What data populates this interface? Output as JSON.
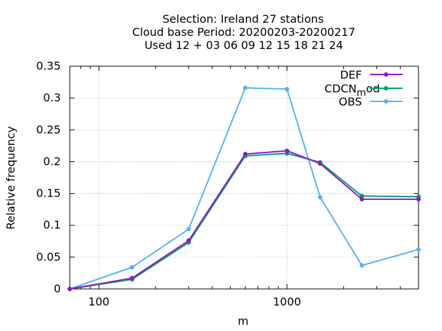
{
  "chart_data": {
    "type": "line",
    "title_lines": [
      "Selection: Ireland      27 stations",
      "Cloud base  Period: 20200203-20200217",
      "Used  12 + 03 06 09 12 15 18 21 24"
    ],
    "xlabel": "m",
    "ylabel": "Relative frequency",
    "xscale": "log",
    "xlim": [
      70,
      5000
    ],
    "ylim": [
      0,
      0.35
    ],
    "x_ticks": [
      100,
      1000
    ],
    "x_tick_labels": [
      "100",
      "1000"
    ],
    "y_ticks": [
      0,
      0.05,
      0.1,
      0.15,
      0.2,
      0.25,
      0.3,
      0.35
    ],
    "y_tick_labels": [
      "0",
      "0.05",
      "0.1",
      "0.15",
      "0.2",
      "0.25",
      "0.3",
      "0.35"
    ],
    "grid": true,
    "legend_position": "top-right",
    "x": [
      70,
      150,
      300,
      600,
      1000,
      1500,
      2500,
      5000
    ],
    "series": [
      {
        "name": "DEF",
        "color": "#8b1ac8",
        "values": [
          0,
          0.017,
          0.076,
          0.212,
          0.217,
          0.197,
          0.141,
          0.141
        ]
      },
      {
        "name": "CDCN_mod",
        "legend_main": "CDCN",
        "legend_sub": "m",
        "legend_tail": "od",
        "color": "#009e73",
        "values": [
          0,
          0.015,
          0.073,
          0.209,
          0.213,
          0.199,
          0.146,
          0.145
        ]
      },
      {
        "name": "OBS",
        "color": "#56b4e9",
        "values": [
          0,
          0.034,
          0.094,
          0.316,
          0.314,
          0.144,
          0.037,
          0.062
        ]
      }
    ]
  }
}
